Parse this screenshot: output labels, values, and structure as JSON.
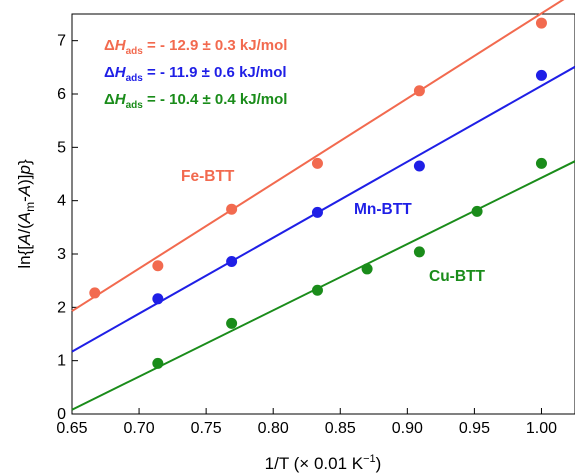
{
  "chart_data": {
    "type": "scatter",
    "title": "",
    "xlabel": {
      "main": "1/T (× 0.01 K",
      "sup": "−1",
      "close": ")"
    },
    "ylabel": {
      "p1": "ln{[",
      "A1": "A",
      "p2": "/(",
      "A2": "A",
      "sub": "m",
      "p3": "-",
      "A3": "A",
      "p4": ")]",
      "p": "p",
      "p5": "}"
    },
    "xlim": [
      0.65,
      1.025
    ],
    "ylim": [
      0,
      7.5
    ],
    "x_ticks": [
      "0.65",
      "0.70",
      "0.75",
      "0.80",
      "0.85",
      "0.90",
      "0.95",
      "1.00"
    ],
    "y_ticks": [
      "0",
      "1",
      "2",
      "3",
      "4",
      "5",
      "6",
      "7"
    ],
    "grid": false,
    "series": [
      {
        "name": "Fe-BTT",
        "color": "#f26a4f",
        "x": [
          0.667,
          0.714,
          0.769,
          0.833,
          0.909,
          1.0
        ],
        "y": [
          2.27,
          2.78,
          3.84,
          4.7,
          6.06,
          7.33
        ],
        "fit": {
          "x": [
            0.65,
            1.025
          ],
          "y": [
            1.93,
            7.91
          ]
        }
      },
      {
        "name": "Mn-BTT",
        "color": "#1f1fe6",
        "x": [
          0.714,
          0.769,
          0.833,
          0.909,
          1.0
        ],
        "y": [
          2.16,
          2.86,
          3.78,
          4.65,
          6.35
        ],
        "fit": {
          "x": [
            0.65,
            1.025
          ],
          "y": [
            1.17,
            6.51
          ]
        }
      },
      {
        "name": "Cu-BTT",
        "color": "#1a8c1a",
        "x": [
          0.714,
          0.769,
          0.833,
          0.87,
          0.909,
          0.952,
          1.0
        ],
        "y": [
          0.95,
          1.7,
          2.32,
          2.72,
          3.04,
          3.8,
          4.7
        ],
        "fit": {
          "x": [
            0.65,
            1.025
          ],
          "y": [
            0.08,
            4.74
          ]
        }
      }
    ],
    "annotations": [
      {
        "delta": "Δ",
        "H": "H",
        "sub": "ads",
        "text": " = - 12.9 ± 0.3 kJ/mol",
        "color": "#f26a4f"
      },
      {
        "delta": "Δ",
        "H": "H",
        "sub": "ads",
        "text": " = - 11.9 ± 0.6 kJ/mol",
        "color": "#1f1fe6"
      },
      {
        "delta": "Δ",
        "H": "H",
        "sub": "ads",
        "text": " = - 10.4 ± 0.4 kJ/mol",
        "color": "#1a8c1a"
      }
    ],
    "series_labels": [
      "Fe-BTT",
      "Mn-BTT",
      "Cu-BTT"
    ]
  }
}
